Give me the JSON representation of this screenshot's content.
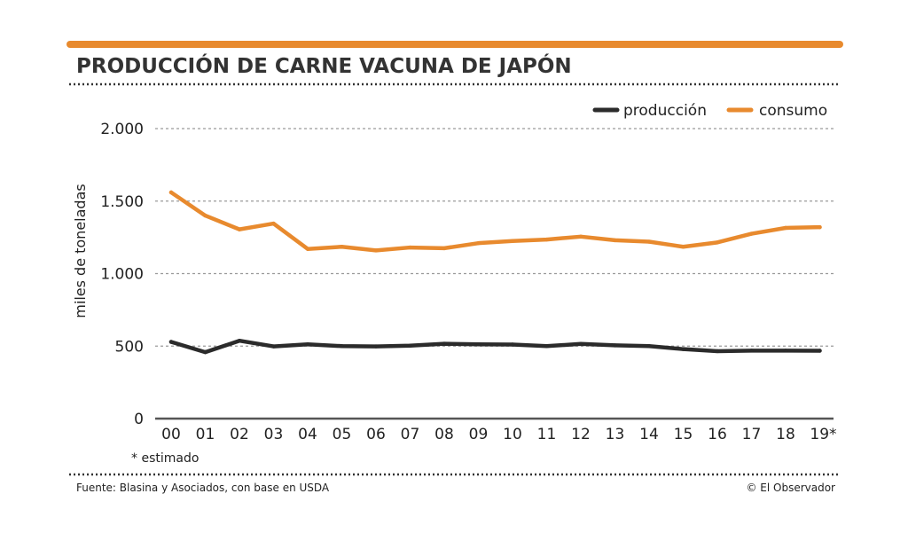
{
  "colors": {
    "accent": "#E88A2E",
    "produccion": "#2B2B2B",
    "consumo": "#E88A2E",
    "axis": "#333333",
    "grid": "#9A9A9A",
    "text": "#222222"
  },
  "footer": {
    "source": "Fuente: Blasina y Asociados, con base en USDA",
    "credit": "© El Observador"
  },
  "chart_data": {
    "type": "line",
    "title": "PRODUCCIÓN DE CARNE VACUNA DE JAPÓN",
    "xlabel": "",
    "ylabel": "miles de toneladas",
    "categories": [
      "00",
      "01",
      "02",
      "03",
      "04",
      "05",
      "06",
      "07",
      "08",
      "09",
      "10",
      "11",
      "12",
      "13",
      "14",
      "15",
      "16",
      "17",
      "18",
      "19*"
    ],
    "ylim": [
      0,
      2000
    ],
    "yticks": [
      0,
      500,
      1000,
      1500,
      2000
    ],
    "ytick_labels": [
      "0",
      "500",
      "1.000",
      "1.500",
      "2.000"
    ],
    "grid": true,
    "legend_position": "top-right",
    "note": "* estimado",
    "series": [
      {
        "name": "producción",
        "color": "#2B2B2B",
        "values": [
          529,
          458,
          537,
          498,
          512,
          500,
          498,
          503,
          516,
          512,
          511,
          500,
          515,
          505,
          500,
          479,
          465,
          469,
          469,
          468
        ]
      },
      {
        "name": "consumo",
        "color": "#E88A2E",
        "values": [
          1560,
          1400,
          1305,
          1345,
          1170,
          1185,
          1160,
          1180,
          1175,
          1210,
          1225,
          1235,
          1255,
          1230,
          1220,
          1185,
          1215,
          1275,
          1315,
          1320
        ]
      }
    ]
  }
}
